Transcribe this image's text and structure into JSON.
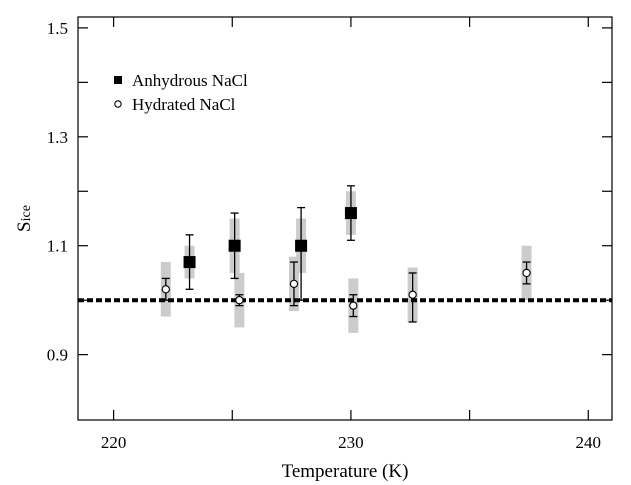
{
  "chart_data": {
    "type": "scatter",
    "title": "",
    "xlabel": "Temperature (K)",
    "ylabel": "S",
    "ylabel_sub": "ice",
    "xlim": [
      218.5,
      241
    ],
    "ylim": [
      0.78,
      1.52
    ],
    "xticks": [
      220,
      230,
      240
    ],
    "xtick_labels": [
      "220",
      "230",
      "240"
    ],
    "xticks_minor": [
      225,
      235
    ],
    "yticks": [
      0.9,
      1.1,
      1.3,
      1.5
    ],
    "ytick_labels": [
      "0.9",
      "1.1",
      "1.3",
      "1.5"
    ],
    "yticks_minor": [
      1.0,
      1.2,
      1.4
    ],
    "grid": false,
    "legend_position": "top-left",
    "reference_line": {
      "y": 1.0,
      "style": "dotted",
      "color": "#000000"
    },
    "series": [
      {
        "name": "Anhydrous NaCl",
        "marker": "filled-square",
        "color": "#000000",
        "x": [
          223.2,
          225.1,
          227.9,
          230.0
        ],
        "y": [
          1.07,
          1.1,
          1.1,
          1.16
        ],
        "err_low": [
          1.02,
          1.04,
          1.0,
          1.11
        ],
        "err_high": [
          1.12,
          1.16,
          1.17,
          1.21
        ],
        "band_low": [
          1.04,
          1.05,
          1.05,
          1.12
        ],
        "band_high": [
          1.1,
          1.15,
          1.15,
          1.2
        ]
      },
      {
        "name": "Hydrated NaCl",
        "marker": "open-circle",
        "color": "#000000",
        "x": [
          222.2,
          225.3,
          227.6,
          230.1,
          232.6,
          237.4
        ],
        "y": [
          1.02,
          1.0,
          1.03,
          0.99,
          1.01,
          1.05
        ],
        "err_low": [
          1.0,
          0.99,
          0.99,
          0.97,
          0.96,
          1.03
        ],
        "err_high": [
          1.04,
          1.01,
          1.07,
          1.01,
          1.05,
          1.07
        ],
        "band_low": [
          0.97,
          0.95,
          0.98,
          0.94,
          0.96,
          1.0
        ],
        "band_high": [
          1.07,
          1.05,
          1.08,
          1.04,
          1.06,
          1.1
        ]
      }
    ],
    "colors": {
      "band": "#cccccc",
      "axis": "#000000"
    }
  }
}
